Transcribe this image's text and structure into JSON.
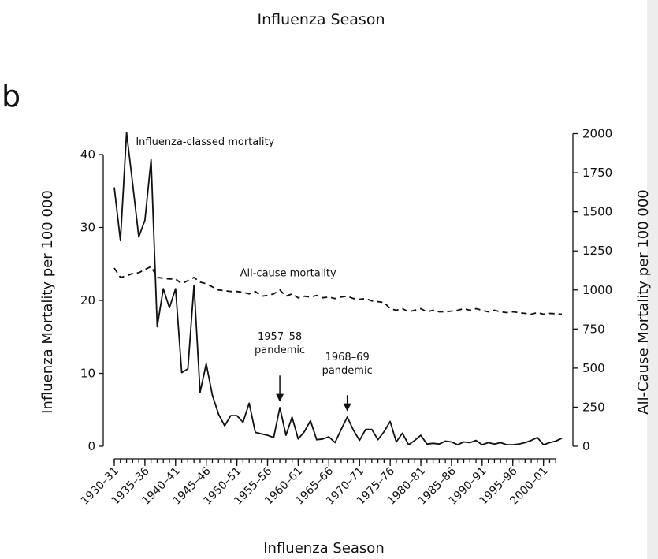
{
  "header": {
    "top_label": "Influenza Season",
    "panel_letter": "b"
  },
  "chart_data": {
    "type": "line",
    "xlabel": "Influenza Season",
    "ylabel_left": "Influenza Mortality per 100 000",
    "ylabel_right": "All-Cause Mortality per 100 000",
    "ylim_left": [
      0,
      44
    ],
    "ylim_right": [
      0,
      2053
    ],
    "yticks_left": [
      0,
      10,
      20,
      30,
      40
    ],
    "yticks_right": [
      0,
      250,
      500,
      750,
      1000,
      1250,
      1500,
      1750,
      2000
    ],
    "x_tick_labels": [
      "1930–31",
      "1935–36",
      "1940–41",
      "1945–46",
      "1950–51",
      "1955–56",
      "1960–61",
      "1965–66",
      "1970–71",
      "1975–76",
      "1980–81",
      "1985–86",
      "1990–91",
      "1995–96",
      "2000–01"
    ],
    "x_start_year": 1930,
    "x_end_year": 2003,
    "x_tick_years": [
      1930,
      1935,
      1940,
      1945,
      1950,
      1955,
      1960,
      1965,
      1970,
      1975,
      1980,
      1985,
      1990,
      1995,
      2000
    ],
    "series": [
      {
        "name": "Influenza-classed mortality",
        "axis": "left",
        "style": "solid",
        "x": [
          1930,
          1931,
          1932,
          1933,
          1934,
          1935,
          1936,
          1937,
          1938,
          1939,
          1940,
          1941,
          1942,
          1943,
          1944,
          1945,
          1946,
          1947,
          1948,
          1949,
          1950,
          1951,
          1952,
          1953,
          1954,
          1955,
          1956,
          1957,
          1958,
          1959,
          1960,
          1961,
          1962,
          1963,
          1964,
          1965,
          1966,
          1967,
          1968,
          1969,
          1970,
          1971,
          1972,
          1973,
          1974,
          1975,
          1976,
          1977,
          1978,
          1979,
          1980,
          1981,
          1982,
          1983,
          1984,
          1985,
          1986,
          1987,
          1988,
          1989,
          1990,
          1991,
          1992,
          1993,
          1994,
          1995,
          1996,
          1997,
          1998,
          1999,
          2000,
          2001,
          2002,
          2003
        ],
        "values": [
          35.5,
          28.2,
          43.0,
          36.0,
          28.7,
          31.0,
          39.3,
          16.4,
          21.6,
          19.0,
          21.6,
          10.1,
          10.6,
          22.1,
          7.4,
          11.3,
          7.0,
          4.4,
          2.8,
          4.2,
          4.2,
          3.3,
          5.9,
          1.9,
          1.7,
          1.5,
          1.2,
          5.3,
          1.5,
          4.0,
          1.0,
          2.0,
          3.5,
          0.9,
          1.0,
          1.3,
          0.5,
          2.3,
          4.0,
          2.2,
          0.8,
          2.3,
          2.3,
          0.9,
          2.0,
          3.4,
          0.6,
          1.8,
          0.2,
          0.8,
          1.5,
          0.3,
          0.4,
          0.3,
          0.7,
          0.6,
          0.2,
          0.6,
          0.5,
          0.8,
          0.2,
          0.5,
          0.3,
          0.5,
          0.2,
          0.2,
          0.3,
          0.5,
          0.8,
          1.2,
          0.2,
          0.5,
          0.7,
          1.1
        ]
      },
      {
        "name": "All-cause mortality",
        "axis": "right",
        "style": "dashed",
        "x": [
          1930,
          1931,
          1932,
          1933,
          1934,
          1935,
          1936,
          1937,
          1938,
          1939,
          1940,
          1941,
          1942,
          1943,
          1944,
          1945,
          1946,
          1947,
          1948,
          1949,
          1950,
          1951,
          1952,
          1953,
          1954,
          1955,
          1956,
          1957,
          1958,
          1959,
          1960,
          1961,
          1962,
          1963,
          1964,
          1965,
          1966,
          1967,
          1968,
          1969,
          1970,
          1971,
          1972,
          1973,
          1974,
          1975,
          1976,
          1977,
          1978,
          1979,
          1980,
          1981,
          1982,
          1983,
          1984,
          1985,
          1986,
          1987,
          1988,
          1989,
          1990,
          1991,
          1992,
          1993,
          1994,
          1995,
          1996,
          1997,
          1998,
          1999,
          2000,
          2001,
          2002,
          2003
        ],
        "values": [
          1140,
          1080,
          1090,
          1105,
          1110,
          1130,
          1150,
          1080,
          1075,
          1070,
          1070,
          1040,
          1060,
          1080,
          1050,
          1040,
          1020,
          1000,
          995,
          990,
          990,
          985,
          975,
          990,
          960,
          965,
          975,
          1000,
          960,
          975,
          950,
          960,
          955,
          965,
          950,
          955,
          945,
          955,
          960,
          945,
          940,
          945,
          930,
          925,
          920,
          880,
          870,
          880,
          860,
          870,
          880,
          860,
          870,
          860,
          860,
          865,
          870,
          880,
          870,
          880,
          870,
          860,
          870,
          860,
          855,
          860,
          855,
          850,
          845,
          855,
          845,
          850,
          848,
          845
        ]
      }
    ],
    "annotations": [
      {
        "text": "Influenza-classed mortality",
        "x": 1933,
        "y": 41.3,
        "axis": "left"
      },
      {
        "text": "All-cause mortality",
        "x": 1950,
        "y": 23.3,
        "axis": "left"
      },
      {
        "text": "1957–58",
        "text2": "pandemic",
        "x": 1957,
        "y_text": 14.6,
        "y_arrow_start": 9.7,
        "y_arrow_end": 6.2,
        "axis": "left"
      },
      {
        "text": "1968–69",
        "text2": "pandemic",
        "x": 1968,
        "y_text": 11.8,
        "y_arrow_start": 7.0,
        "y_arrow_end": 4.9,
        "axis": "left"
      }
    ]
  }
}
